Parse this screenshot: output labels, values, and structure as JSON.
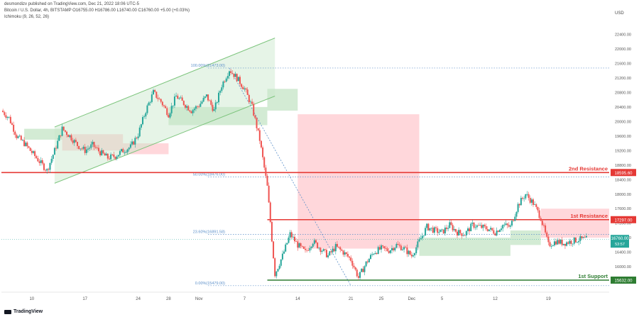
{
  "header": {
    "publish_line": "desmondizv published on TradingView.com, Dec 21, 2022 18:06 UTC-5",
    "symbol_line": "Bitcoin / U.S. Dollar, 4h, BITSTAMP  O16755.00 H16786.00 L16740.00 C16760.00 +5.00 (+0.03%)",
    "indicator_line": "Ichimoku (9, 26, 52, 26)"
  },
  "brand": {
    "label": "TradingView",
    "icon": "tradingview-logo-icon"
  },
  "colors": {
    "candle_up": "#26a69a",
    "candle_down": "#ef5350",
    "resistance": "#e53935",
    "support": "#2e7d32",
    "fib": "#5b8fc9",
    "channel": "#7cc47c"
  },
  "chart_data": {
    "type": "candlestick",
    "title": "",
    "currency": "USD",
    "ylim": [
      15300,
      22800
    ],
    "y_ticks": [
      "22400.00",
      "22000.00",
      "21600.00",
      "21200.00",
      "20800.00",
      "20400.00",
      "20000.00",
      "19600.00",
      "19200.00",
      "18800.00",
      "18400.00",
      "18000.00",
      "17600.00",
      "17200.00",
      "16800.00",
      "16400.00",
      "16000.00"
    ],
    "x_tick_labels": [
      "10",
      "17",
      "24",
      "28",
      "Nov",
      "7",
      "14",
      "21",
      "25",
      "Dec",
      "5",
      "12",
      "19"
    ],
    "x_tick_positions": [
      3,
      10,
      17,
      21,
      25,
      31,
      38,
      45,
      49,
      53,
      57,
      64,
      71
    ],
    "x_range": [
      -1,
      79
    ],
    "price_path": [
      [
        -1,
        20300
      ],
      [
        0,
        20100
      ],
      [
        1,
        19600
      ],
      [
        2,
        19400
      ],
      [
        3,
        19150
      ],
      [
        4,
        18900
      ],
      [
        5,
        18650
      ],
      [
        6,
        19200
      ],
      [
        7,
        19800
      ],
      [
        8,
        19600
      ],
      [
        9,
        19350
      ],
      [
        10,
        19200
      ],
      [
        11,
        19350
      ],
      [
        12,
        19150
      ],
      [
        13,
        19000
      ],
      [
        14,
        19050
      ],
      [
        15,
        19200
      ],
      [
        16,
        19300
      ],
      [
        17,
        19650
      ],
      [
        18,
        20300
      ],
      [
        19,
        20800
      ],
      [
        20,
        20550
      ],
      [
        21,
        20200
      ],
      [
        22,
        20700
      ],
      [
        23,
        20500
      ],
      [
        24,
        20300
      ],
      [
        25,
        20450
      ],
      [
        26,
        20700
      ],
      [
        27,
        20300
      ],
      [
        28,
        21000
      ],
      [
        29,
        21430
      ],
      [
        30,
        21200
      ],
      [
        31,
        20900
      ],
      [
        32,
        20400
      ],
      [
        33,
        19500
      ],
      [
        34,
        18200
      ],
      [
        35,
        15800
      ],
      [
        36,
        16300
      ],
      [
        37,
        16900
      ],
      [
        38,
        16600
      ],
      [
        39,
        16400
      ],
      [
        40,
        16700
      ],
      [
        41,
        16500
      ],
      [
        42,
        16300
      ],
      [
        43,
        16550
      ],
      [
        44,
        16400
      ],
      [
        45,
        16200
      ],
      [
        46,
        15700
      ],
      [
        47,
        16100
      ],
      [
        48,
        16400
      ],
      [
        49,
        16500
      ],
      [
        50,
        16450
      ],
      [
        51,
        16600
      ],
      [
        52,
        16500
      ],
      [
        53,
        16300
      ],
      [
        54,
        16700
      ],
      [
        55,
        17100
      ],
      [
        56,
        17000
      ],
      [
        57,
        16950
      ],
      [
        58,
        17150
      ],
      [
        59,
        16950
      ],
      [
        60,
        16900
      ],
      [
        61,
        17150
      ],
      [
        62,
        17100
      ],
      [
        63,
        17050
      ],
      [
        64,
        16950
      ],
      [
        65,
        17150
      ],
      [
        66,
        17100
      ],
      [
        67,
        17700
      ],
      [
        68,
        18000
      ],
      [
        69,
        17750
      ],
      [
        70,
        17350
      ],
      [
        71,
        16600
      ],
      [
        72,
        16700
      ],
      [
        73,
        16650
      ],
      [
        74,
        16700
      ],
      [
        75,
        16750
      ],
      [
        76,
        16760
      ]
    ],
    "ichimoku_cloud": [
      {
        "from": 2,
        "to": 7,
        "top": 19800,
        "bottom": 19500,
        "color": "green"
      },
      {
        "from": 7,
        "to": 15,
        "top": 19650,
        "bottom": 19200,
        "color": "red"
      },
      {
        "from": 15,
        "to": 21,
        "top": 19400,
        "bottom": 19100,
        "color": "red"
      },
      {
        "from": 21,
        "to": 34,
        "top": 20400,
        "bottom": 19900,
        "color": "green"
      },
      {
        "from": 34,
        "to": 38,
        "top": 20900,
        "bottom": 20300,
        "color": "green"
      },
      {
        "from": 38,
        "to": 54,
        "top": 20200,
        "bottom": 16500,
        "color": "red"
      },
      {
        "from": 54,
        "to": 66,
        "top": 16800,
        "bottom": 16300,
        "color": "green"
      },
      {
        "from": 66,
        "to": 70,
        "top": 17000,
        "bottom": 16600,
        "color": "green"
      },
      {
        "from": 70,
        "to": 79,
        "top": 17600,
        "bottom": 16800,
        "color": "red"
      }
    ],
    "channel": {
      "upper": [
        [
          6,
          19850
        ],
        [
          35,
          22300
        ]
      ],
      "lower": [
        [
          6,
          18300
        ],
        [
          35,
          20700
        ]
      ]
    },
    "fib_levels": [
      {
        "label": "100.00%(21473.00)",
        "value": 21473
      },
      {
        "label": "50.00%(18476.00)",
        "value": 18476
      },
      {
        "label": "23.60%(16891.58)",
        "value": 16891.58
      },
      {
        "label": "0.00%(15479.00)",
        "value": 15479
      }
    ],
    "fib_anchor": {
      "start": [
        29,
        21473
      ],
      "end": [
        45,
        15479
      ]
    },
    "levels": [
      {
        "name": "2nd Resistance",
        "value": 18595.6,
        "label": "18595.60",
        "color": "#e53935"
      },
      {
        "name": "1st Resistance",
        "value": 17297.0,
        "label": "17297.00",
        "color": "#e53935"
      },
      {
        "name": "1st Support",
        "value": 15632.0,
        "label": "15632.00",
        "color": "#2e7d32"
      }
    ],
    "current_price": {
      "value": 16760.0,
      "label": "16760.00",
      "countdown": "53:57"
    }
  }
}
